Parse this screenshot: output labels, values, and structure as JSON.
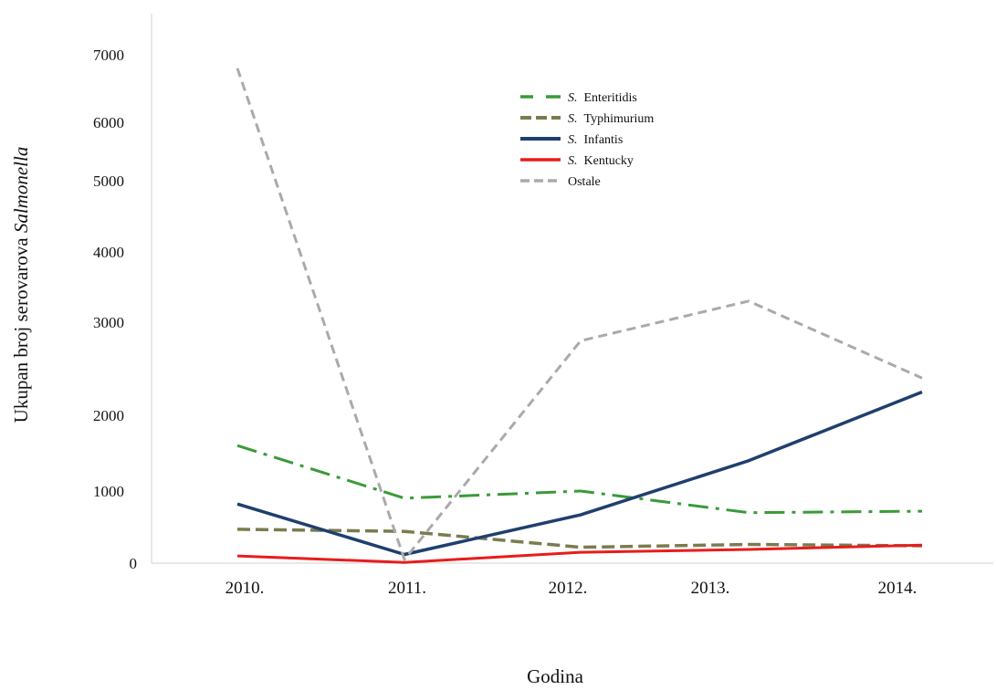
{
  "chart_data": {
    "type": "line",
    "title": "",
    "xlabel": "Godina",
    "ylabel_prefix": "Ukupan broj serovarova ",
    "ylabel_italic": "Salmonella",
    "categories": [
      "2010.",
      "2011.",
      "2012.",
      "2013.",
      "2014."
    ],
    "y_ticks": [
      {
        "label": "0",
        "value": 0
      },
      {
        "label": "1000",
        "value": 1000
      },
      {
        "label": "2000",
        "value": 2000
      },
      {
        "label": "3000",
        "value": 3000
      },
      {
        "label": "4000",
        "value": 4000
      },
      {
        "label": "5000",
        "value": 5000
      },
      {
        "label": "6000",
        "value": 6000
      },
      {
        "label": "7000",
        "value": 7000
      }
    ],
    "grid": false,
    "legend_position": "top-center",
    "series": [
      {
        "prefix": "S.",
        "name": "Enteritidis",
        "color": "#3a9a3a",
        "dash": "dashdot",
        "values": [
          1600,
          900,
          1000,
          700,
          720
        ]
      },
      {
        "prefix": "S.",
        "name": "Typhimurium",
        "color": "#7b7b4f",
        "dash": "dashed-thick",
        "values": [
          470,
          440,
          220,
          260,
          240
        ]
      },
      {
        "prefix": "S.",
        "name": "Infantis",
        "color": "#1f3f6e",
        "dash": "solid",
        "values": [
          820,
          120,
          670,
          1400,
          2250
        ]
      },
      {
        "prefix": "S.",
        "name": "Kentucky",
        "color": "#e81c1c",
        "dash": "solid",
        "values": [
          100,
          10,
          150,
          190,
          250
        ]
      },
      {
        "prefix": "",
        "name": "Ostale",
        "color": "#aaaaaa",
        "dash": "dashed",
        "values": [
          6800,
          50,
          2800,
          3300,
          2400
        ]
      }
    ]
  }
}
